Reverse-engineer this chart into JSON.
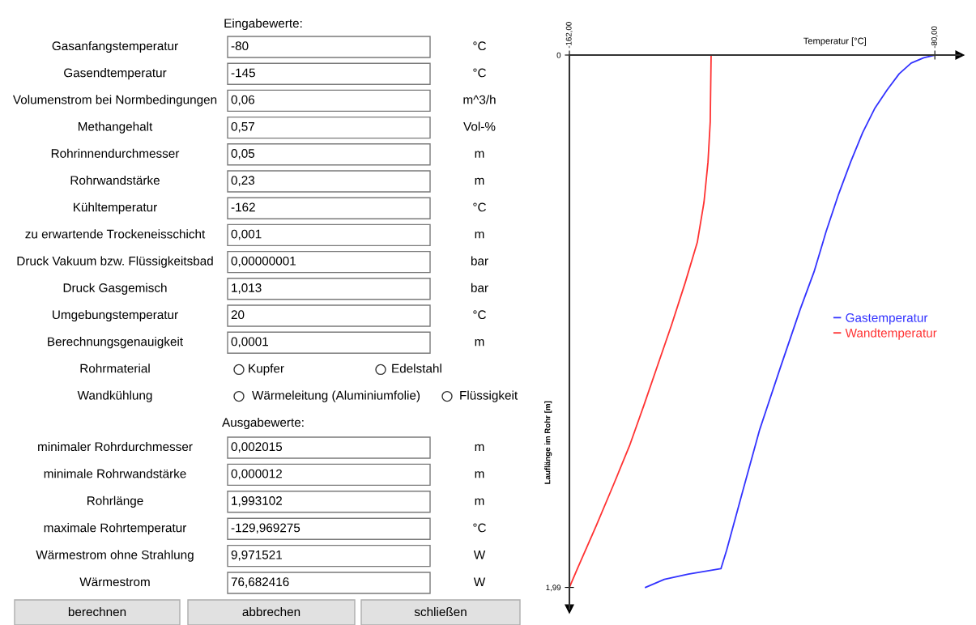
{
  "chart_data": [
    {
      "type": "other",
      "title": "Eingabewerte:",
      "annotations": [
        "Gasanfangstemperatur",
        "-80",
        "°C",
        "Gasendtemperatur",
        "-145",
        "°C",
        "Volumenstrom bei Normbedingungen",
        "0,06",
        "m^3/h",
        "Methangehalt",
        "0,57",
        "Vol-%",
        "Rohrinnendurchmesser",
        "0,05",
        "m",
        "Rohrwandstärke",
        "0,23",
        "m",
        "Kühltemperatur",
        "-162",
        "°C",
        "zu erwartende Trockeneisschicht",
        "0,001",
        "m",
        "Druck Vakuum bzw. Flüssigkeitsbad",
        "0,00000001",
        "bar",
        "Druck Gasgemisch",
        "1,013",
        "bar",
        "Umgebungstemperatur",
        "20",
        "°C",
        "Berechnungsgenauigkeit",
        "0,0001",
        "m",
        "Rohrmaterial",
        "Kupfer",
        "Edelstahl",
        "Wandkühlung",
        "Wärmeleitung (Aluminiumfolie)",
        "Flüssigkeit"
      ]
    },
    {
      "type": "other",
      "title": "Ausgabewerte:",
      "annotations": [
        "minimaler Rohrdurchmesser",
        "0,002015",
        "m",
        "minimale Rohrwandstärke",
        "0,000012",
        "m",
        "Rohrlänge",
        "1,993102",
        "m",
        "maximale Rohrtemperatur",
        "-129,969275",
        "°C",
        "Wärmestrom ohne Strahlung",
        "9,971521",
        "W",
        "Wärmestrom",
        "76,682416",
        "W",
        "berechnen",
        "abbrechen",
        "schließen"
      ]
    },
    {
      "type": "line",
      "xlabel": "Temperatur [°C]",
      "ylabel": "Lauflänge im Rohr [m]",
      "xlim": [
        -162,
        -74.4
      ],
      "ylim": [
        2.07,
        0
      ],
      "xticks": [
        {
          "value": -162,
          "label": "-162,00"
        },
        {
          "value": -80,
          "label": "-80,00"
        }
      ],
      "yticks": [
        0,
        {
          "value": 1.99,
          "label": "1,99"
        }
      ],
      "grid": false,
      "legend": "right",
      "marker": "none",
      "line_style": "solid",
      "series": [
        {
          "name": "Gastemperatur",
          "color": "#3333ff",
          "x": [
            -80.0,
            -82.5,
            -85.3,
            -88.0,
            -90.7,
            -93.5,
            -96.2,
            -98.9,
            -101.6,
            -104.4,
            -107.1,
            -110.2,
            -114.7,
            -119.3,
            -123.1,
            -126.7,
            -128.0,
            -135.3,
            -140.7,
            -144.9
          ],
          "values": [
            0,
            0.01,
            0.03,
            0.07,
            0.13,
            0.2,
            0.29,
            0.4,
            0.52,
            0.66,
            0.81,
            0.95,
            1.17,
            1.4,
            1.63,
            1.85,
            1.92,
            1.94,
            1.96,
            1.99
          ]
        },
        {
          "name": "Wandtemperatur",
          "color": "#ff3333",
          "x": [
            -130.2,
            -130.4,
            -130.9,
            -131.8,
            -133.3,
            -136.0,
            -139.1,
            -142.2,
            -145.3,
            -148.5,
            -152.2,
            -156.0,
            -160.2,
            -162.0
          ],
          "values": [
            0,
            0.25,
            0.4,
            0.55,
            0.7,
            0.85,
            1.01,
            1.16,
            1.31,
            1.46,
            1.61,
            1.76,
            1.92,
            1.99
          ]
        }
      ]
    }
  ]
}
